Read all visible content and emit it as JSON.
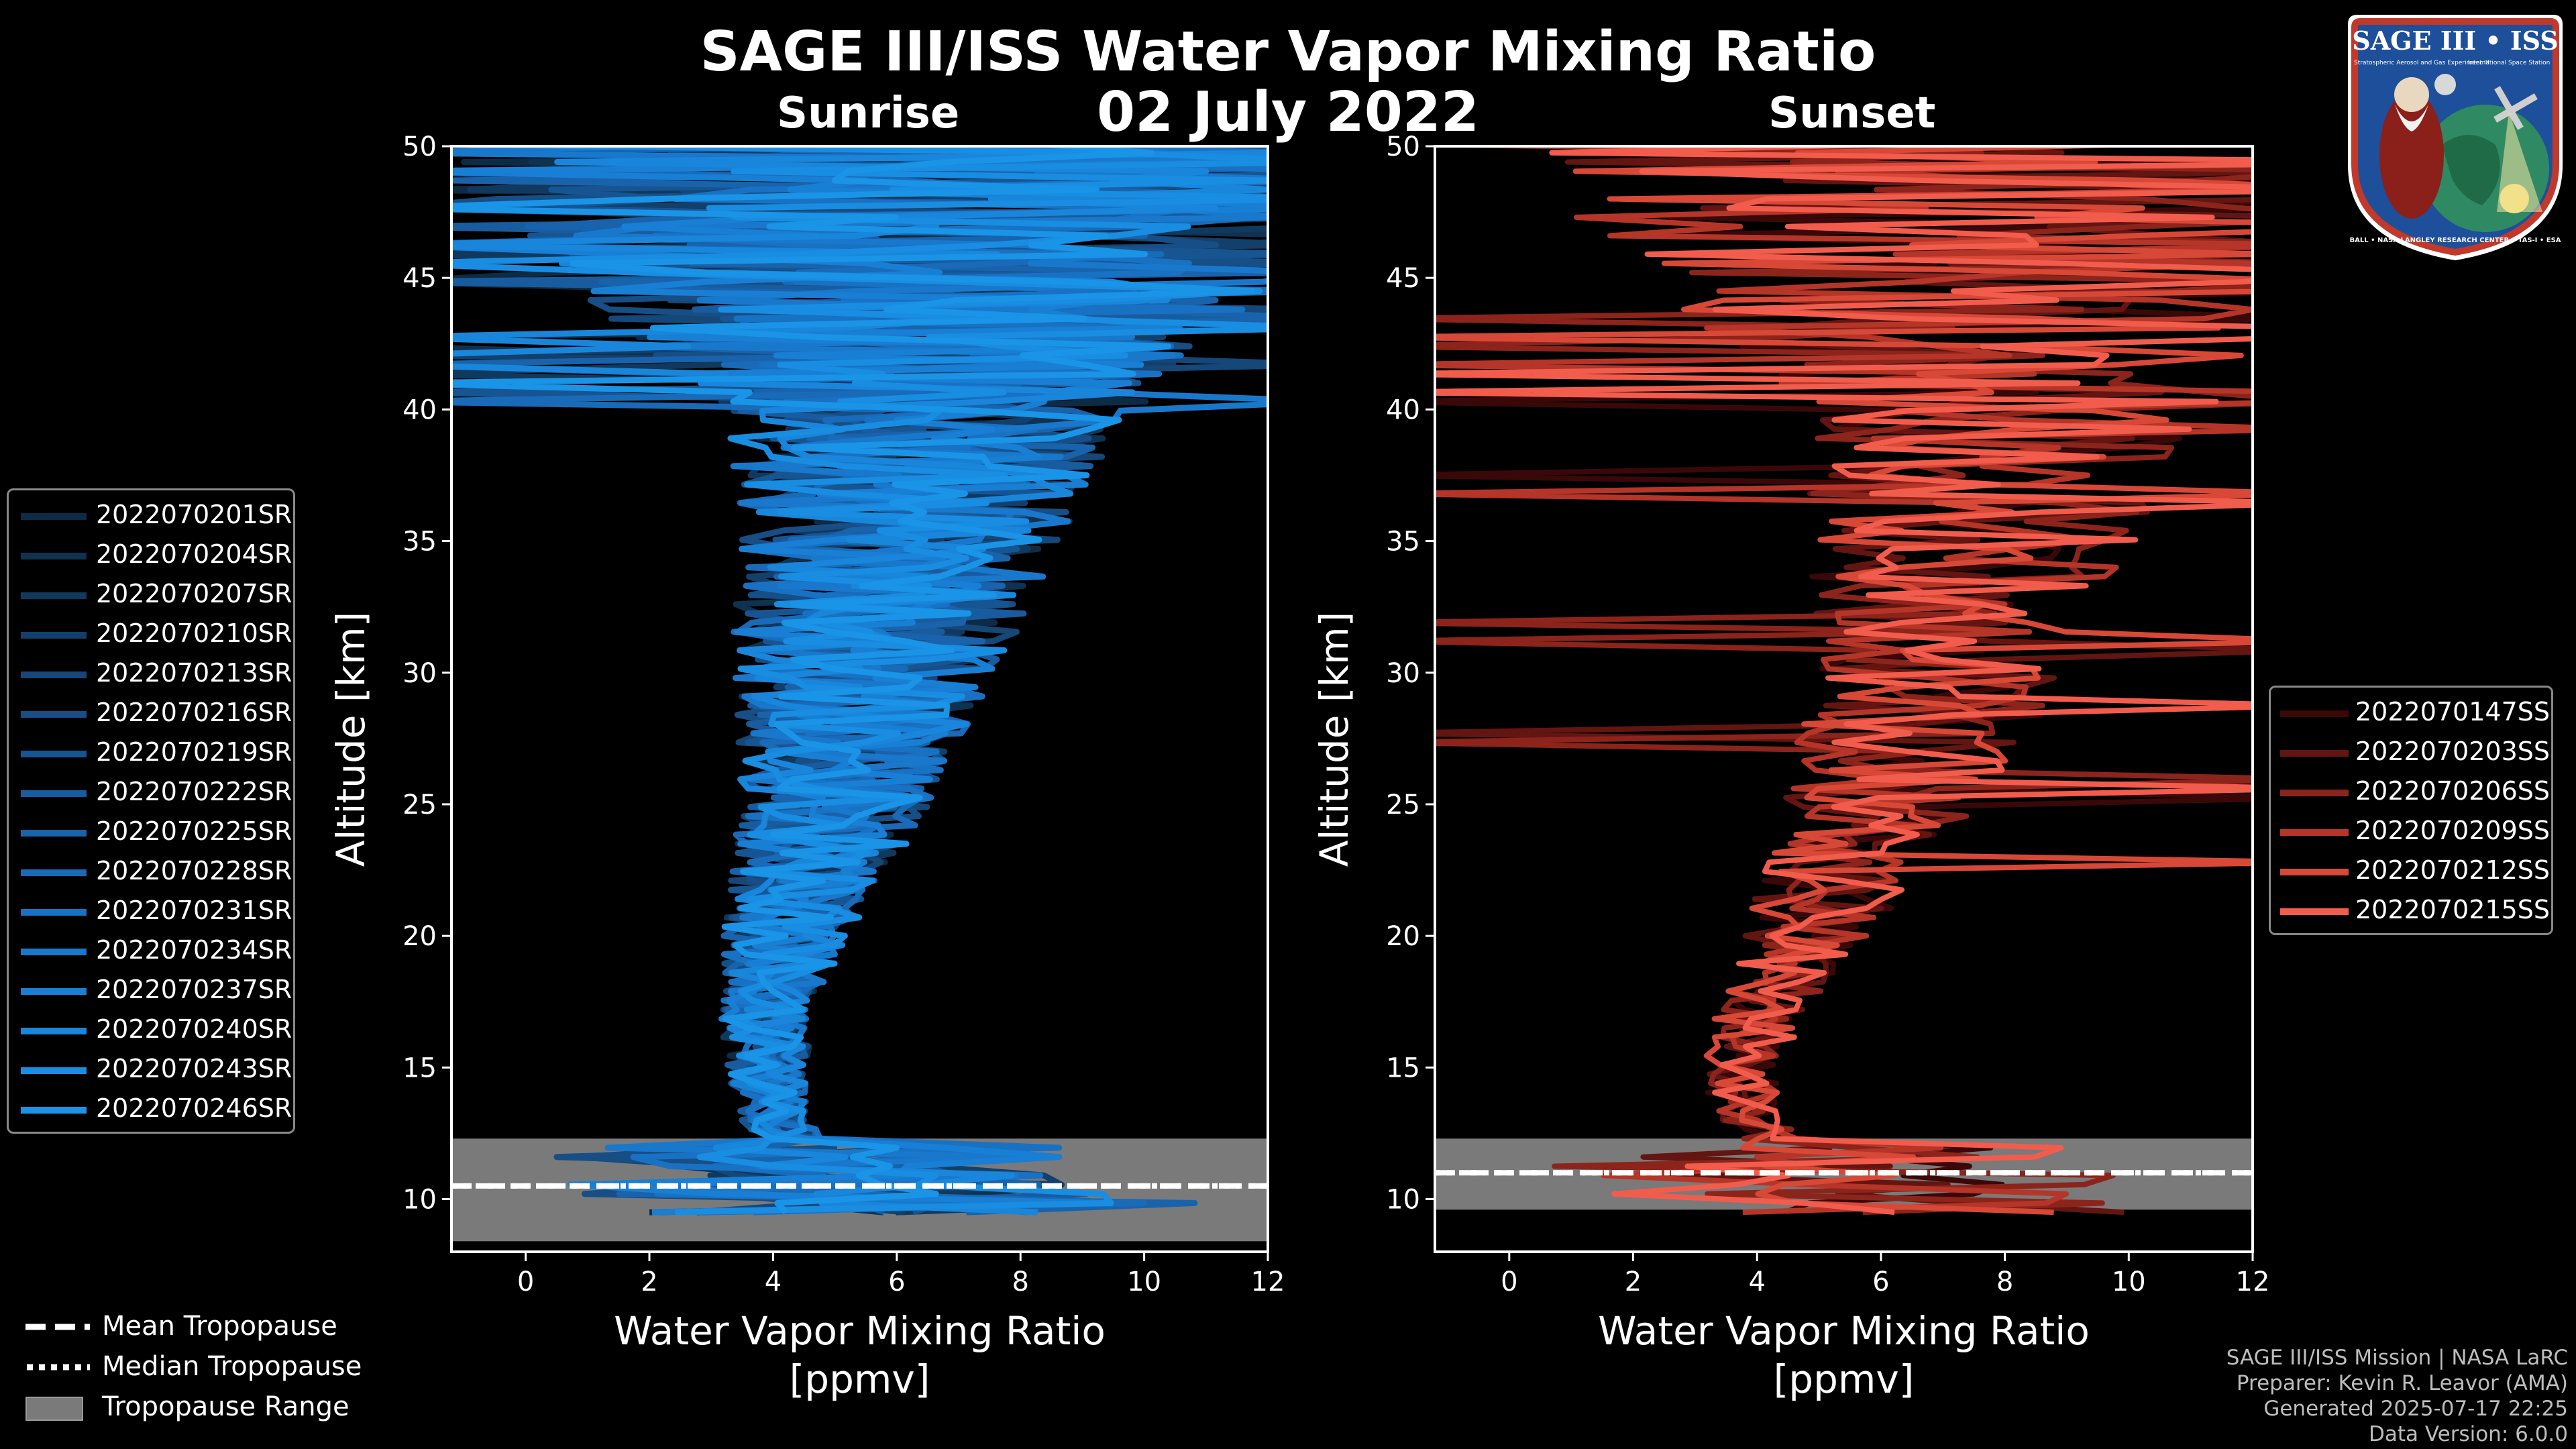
{
  "title": "SAGE III/ISS Water Vapor Mixing Ratio",
  "date": "02 July 2022",
  "panels": {
    "sunrise": {
      "title": "Sunrise"
    },
    "sunset": {
      "title": "Sunset"
    }
  },
  "chart_data": [
    {
      "type": "line",
      "panel": "Sunrise",
      "xlabel": "Water Vapor Mixing Ratio\n[ppmv]",
      "ylabel": "Altitude [km]",
      "xlim": [
        -1.2,
        12
      ],
      "ylim": [
        8,
        50
      ],
      "xticks": [
        0,
        2,
        4,
        6,
        8,
        10,
        12
      ],
      "yticks": [
        10,
        15,
        20,
        25,
        30,
        35,
        40,
        45,
        50
      ],
      "tropopause": {
        "mean_km": 10.5,
        "median_km": 10.5,
        "range_km": [
          8.4,
          12.3
        ]
      },
      "profile_center": [
        {
          "alt": 10,
          "value": 5.5
        },
        {
          "alt": 12,
          "value": 4.5
        },
        {
          "alt": 13,
          "value": 4.0
        },
        {
          "alt": 15,
          "value": 3.9
        },
        {
          "alt": 17,
          "value": 3.9
        },
        {
          "alt": 20,
          "value": 4.2
        },
        {
          "alt": 25,
          "value": 5.0
        },
        {
          "alt": 30,
          "value": 5.5
        },
        {
          "alt": 35,
          "value": 6.0
        },
        {
          "alt": 40,
          "value": 6.5
        },
        {
          "alt": 45,
          "value": 6.5
        },
        {
          "alt": 50,
          "value": 6.5
        }
      ],
      "series": [
        {
          "name": "2022070201SR",
          "color": "#0d2b44"
        },
        {
          "name": "2022070204SR",
          "color": "#0f3251"
        },
        {
          "name": "2022070207SR",
          "color": "#11395e"
        },
        {
          "name": "2022070210SR",
          "color": "#13406b"
        },
        {
          "name": "2022070213SR",
          "color": "#154778"
        },
        {
          "name": "2022070216SR",
          "color": "#164e85"
        },
        {
          "name": "2022070219SR",
          "color": "#175592"
        },
        {
          "name": "2022070222SR",
          "color": "#185c9f"
        },
        {
          "name": "2022070225SR",
          "color": "#1963ac"
        },
        {
          "name": "2022070228SR",
          "color": "#196ab8"
        },
        {
          "name": "2022070231SR",
          "color": "#1971c3"
        },
        {
          "name": "2022070234SR",
          "color": "#1978cc"
        },
        {
          "name": "2022070237SR",
          "color": "#197fd4"
        },
        {
          "name": "2022070240SR",
          "color": "#1986db"
        },
        {
          "name": "2022070243SR",
          "color": "#198de1"
        },
        {
          "name": "2022070246SR",
          "color": "#1a94e6"
        }
      ]
    },
    {
      "type": "line",
      "panel": "Sunset",
      "xlabel": "Water Vapor Mixing Ratio\n[ppmv]",
      "ylabel": "Altitude [km]",
      "xlim": [
        -1.2,
        12
      ],
      "ylim": [
        8,
        50
      ],
      "xticks": [
        0,
        2,
        4,
        6,
        8,
        10,
        12
      ],
      "yticks": [
        10,
        15,
        20,
        25,
        30,
        35,
        40,
        45,
        50
      ],
      "tropopause": {
        "mean_km": 11.0,
        "median_km": 11.0,
        "range_km": [
          9.6,
          12.3
        ]
      },
      "profile_center": [
        {
          "alt": 10,
          "value": 6.0
        },
        {
          "alt": 12,
          "value": 4.5
        },
        {
          "alt": 13,
          "value": 3.8
        },
        {
          "alt": 15,
          "value": 3.8
        },
        {
          "alt": 17,
          "value": 4.0
        },
        {
          "alt": 20,
          "value": 4.8
        },
        {
          "alt": 25,
          "value": 6.0
        },
        {
          "alt": 30,
          "value": 7.0
        },
        {
          "alt": 35,
          "value": 7.5
        },
        {
          "alt": 40,
          "value": 8.0
        },
        {
          "alt": 45,
          "value": 8.0
        },
        {
          "alt": 50,
          "value": 8.0
        }
      ],
      "series": [
        {
          "name": "2022070147SS",
          "color": "#3a0808"
        },
        {
          "name": "2022070203SS",
          "color": "#631512"
        },
        {
          "name": "2022070206SS",
          "color": "#8c241c"
        },
        {
          "name": "2022070209SS",
          "color": "#b53528"
        },
        {
          "name": "2022070212SS",
          "color": "#d84837"
        },
        {
          "name": "2022070215SS",
          "color": "#f25c4c"
        }
      ]
    }
  ],
  "tropopause_legend": [
    {
      "label": "Mean Tropopause",
      "style": "dashed"
    },
    {
      "label": "Median Tropopause",
      "style": "dotted"
    },
    {
      "label": "Tropopause Range",
      "style": "box"
    }
  ],
  "credits": {
    "mission": "SAGE III/ISS Mission | NASA LaRC",
    "preparer": "Preparer: Kevin R. Leavor (AMA)",
    "generated": "Generated 2025-07-17 22:25",
    "version": "Data Version: 6.0.0"
  },
  "logo": {
    "title": "SAGE III • ISS",
    "subtitle": "Stratospheric Aerosol and Gas Experiment III",
    "subtitle2": "International Space Station",
    "ring": "BALL • NASA LANGLEY RESEARCH CENTER • TAS-I • ESA"
  }
}
